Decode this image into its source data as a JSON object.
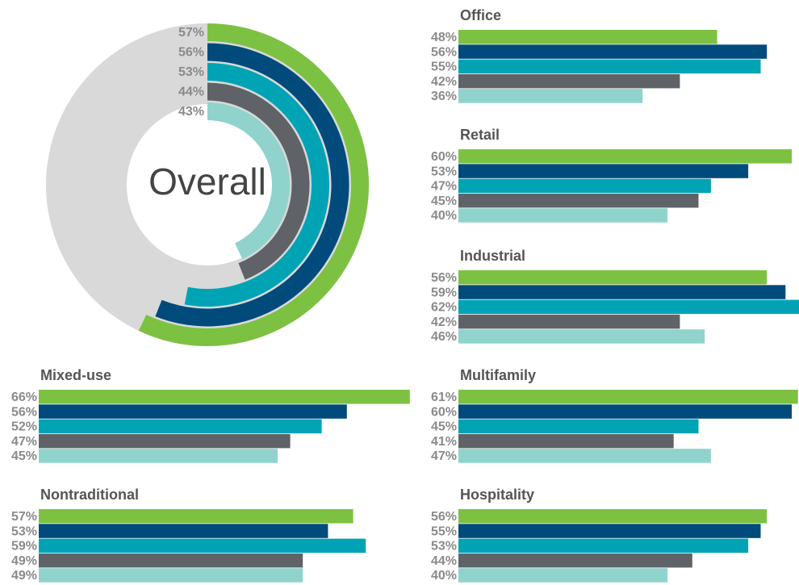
{
  "chart_data": [
    {
      "type": "radial",
      "title": "Overall",
      "values": [
        57,
        56,
        53,
        44,
        43
      ],
      "value_labels": [
        "57%",
        "56%",
        "53%",
        "44%",
        "43%"
      ],
      "colors": [
        "#7dc142",
        "#004b7c",
        "#00a3b4",
        "#5f6368",
        "#8fd3cc"
      ],
      "background": "#d9d9d9"
    },
    {
      "type": "hbar",
      "title": "Office",
      "values": [
        48,
        56,
        55,
        42,
        36
      ],
      "value_labels": [
        "48%",
        "56%",
        "55%",
        "42%",
        "36%"
      ],
      "colors": [
        "#7dc142",
        "#004b7c",
        "#00a3b4",
        "#5f6368",
        "#8fd3cc"
      ]
    },
    {
      "type": "hbar",
      "title": "Retail",
      "values": [
        60,
        53,
        47,
        45,
        40
      ],
      "value_labels": [
        "60%",
        "53%",
        "47%",
        "45%",
        "40%"
      ],
      "colors": [
        "#7dc142",
        "#004b7c",
        "#00a3b4",
        "#5f6368",
        "#8fd3cc"
      ]
    },
    {
      "type": "hbar",
      "title": "Industrial",
      "values": [
        56,
        59,
        62,
        42,
        46
      ],
      "value_labels": [
        "56%",
        "59%",
        "62%",
        "42%",
        "46%"
      ],
      "colors": [
        "#7dc142",
        "#004b7c",
        "#00a3b4",
        "#5f6368",
        "#8fd3cc"
      ]
    },
    {
      "type": "hbar",
      "title": "Mixed-use",
      "values": [
        66,
        56,
        52,
        47,
        45
      ],
      "value_labels": [
        "66%",
        "56%",
        "52%",
        "47%",
        "45%"
      ],
      "colors": [
        "#7dc142",
        "#004b7c",
        "#00a3b4",
        "#5f6368",
        "#8fd3cc"
      ]
    },
    {
      "type": "hbar",
      "title": "Multifamily",
      "values": [
        61,
        60,
        45,
        41,
        47
      ],
      "value_labels": [
        "61%",
        "60%",
        "45%",
        "41%",
        "47%"
      ],
      "colors": [
        "#7dc142",
        "#004b7c",
        "#00a3b4",
        "#5f6368",
        "#8fd3cc"
      ]
    },
    {
      "type": "hbar",
      "title": "Nontraditional",
      "values": [
        57,
        53,
        59,
        49,
        49
      ],
      "value_labels": [
        "57%",
        "53%",
        "59%",
        "49%",
        "49%"
      ],
      "colors": [
        "#7dc142",
        "#004b7c",
        "#00a3b4",
        "#5f6368",
        "#8fd3cc"
      ]
    },
    {
      "type": "hbar",
      "title": "Hospitality",
      "values": [
        56,
        55,
        53,
        44,
        40
      ],
      "value_labels": [
        "56%",
        "55%",
        "53%",
        "44%",
        "40%"
      ],
      "colors": [
        "#7dc142",
        "#004b7c",
        "#00a3b4",
        "#5f6368",
        "#8fd3cc"
      ]
    }
  ]
}
